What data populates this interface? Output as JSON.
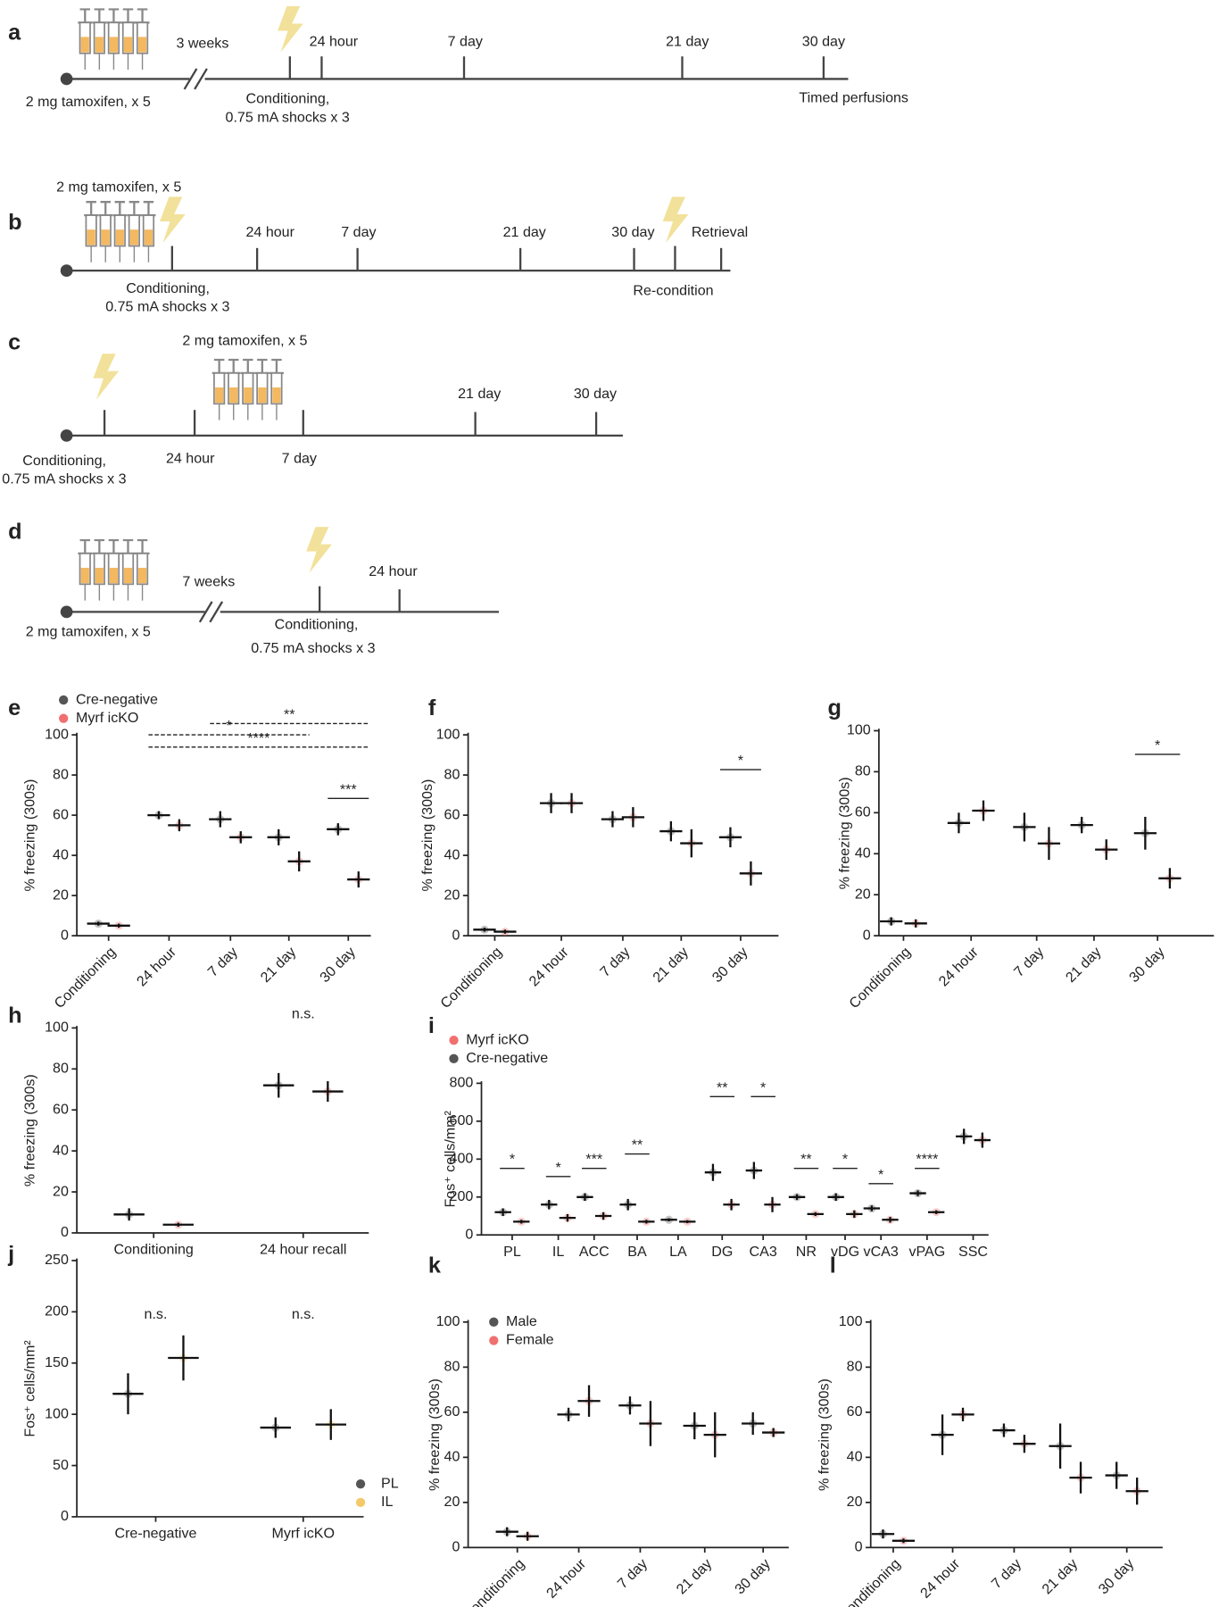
{
  "timelines": [
    {
      "letter": "a",
      "texts": [
        "2 mg tamoxifen, x 5",
        "3 weeks",
        "24 hour",
        "7 day",
        "21 day",
        "30 day",
        "Conditioning,",
        "0.75 mA shocks x 3",
        "Timed perfusions"
      ]
    },
    {
      "letter": "b",
      "texts": [
        "2 mg tamoxifen, x 5",
        "24 hour",
        "7 day",
        "21 day",
        "30 day",
        "Retrieval",
        "Conditioning,",
        "0.75 mA shocks x 3",
        "Re-condition"
      ]
    },
    {
      "letter": "c",
      "texts": [
        "2 mg tamoxifen, x 5",
        "21 day",
        "30 day",
        "Conditioning,",
        "0.75 mA shocks x 3",
        "24 hour",
        "7 day"
      ]
    },
    {
      "letter": "d",
      "texts": [
        "7 weeks",
        "24 hour",
        "2 mg tamoxifen, x 5",
        "Conditioning,",
        "0.75 mA shocks x 3"
      ]
    }
  ],
  "chart_data": [
    {
      "type": "dot",
      "letter": "e",
      "ylabel": "% freezing (300s)",
      "categories": [
        "Conditioning",
        "24 hour",
        "7 day",
        "21 day",
        "30 day"
      ],
      "ylim": [
        0,
        100
      ],
      "yticks": [
        0,
        20,
        40,
        60,
        80,
        100
      ],
      "series": [
        {
          "name": "Cre-negative",
          "color": "#555555",
          "values": [
            6,
            60,
            58,
            49,
            53
          ],
          "errors": [
            1,
            2,
            4,
            4,
            3
          ]
        },
        {
          "name": "Myrf icKO",
          "color": "#f07070",
          "values": [
            5,
            55,
            49,
            37,
            28
          ],
          "errors": [
            1,
            3,
            3,
            5,
            4
          ]
        }
      ],
      "annotations": [
        {
          "label": "**",
          "span": [
            "7 day",
            "30 day"
          ],
          "line": "dashed"
        },
        {
          "label": "*",
          "span": [
            "24 hour",
            "21 day"
          ],
          "line": "dashed"
        },
        {
          "label": "****",
          "span": [
            "24 hour",
            "30 day"
          ],
          "line": "dashed"
        },
        {
          "label": "***",
          "span": [
            "30 day",
            "30 day"
          ],
          "line": "solid"
        }
      ]
    },
    {
      "type": "dot",
      "letter": "f",
      "ylabel": "% freezing (300s)",
      "categories": [
        "Conditioning",
        "24 hour",
        "7 day",
        "21 day",
        "30 day"
      ],
      "ylim": [
        0,
        100
      ],
      "yticks": [
        0,
        20,
        40,
        60,
        80,
        100
      ],
      "series": [
        {
          "color": "#555555",
          "values": [
            3,
            66,
            58,
            52,
            49
          ],
          "errors": [
            1,
            5,
            4,
            5,
            5
          ]
        },
        {
          "color": "#f07070",
          "values": [
            2,
            66,
            59,
            46,
            31
          ],
          "errors": [
            1,
            5,
            5,
            7,
            6
          ]
        }
      ],
      "annotations": [
        {
          "label": "*",
          "span": [
            "30 day",
            "30 day"
          ],
          "line": "solid"
        }
      ]
    },
    {
      "type": "dot",
      "letter": "g",
      "ylabel": "% freezing (300s)",
      "categories": [
        "Conditioning",
        "24 hour",
        "7 day",
        "21 day",
        "30 day"
      ],
      "ylim": [
        0,
        100
      ],
      "yticks": [
        0,
        20,
        40,
        60,
        80,
        100
      ],
      "series": [
        {
          "color": "#555555",
          "values": [
            7,
            55,
            53,
            54,
            50
          ],
          "errors": [
            2,
            5,
            7,
            4,
            8
          ]
        },
        {
          "color": "#f07070",
          "values": [
            6,
            61,
            45,
            42,
            28
          ],
          "errors": [
            2,
            5,
            8,
            5,
            5
          ]
        }
      ],
      "annotations": [
        {
          "label": "*",
          "span": [
            "30 day",
            "30 day"
          ],
          "line": "solid"
        }
      ]
    },
    {
      "type": "dot",
      "letter": "h",
      "ylabel": "% freezing (300s)",
      "categories": [
        "Conditioning",
        "24 hour recall"
      ],
      "ylim": [
        0,
        100
      ],
      "yticks": [
        0,
        20,
        40,
        60,
        80,
        100
      ],
      "series": [
        {
          "color": "#555555",
          "values": [
            9,
            72
          ],
          "errors": [
            3,
            6
          ]
        },
        {
          "color": "#f07070",
          "values": [
            4,
            69
          ],
          "errors": [
            1,
            5
          ]
        }
      ],
      "annotations": [
        {
          "label": "n.s.",
          "span": [
            "24 hour recall",
            "24 hour recall"
          ]
        }
      ]
    },
    {
      "type": "dot",
      "letter": "i",
      "ylabel": "Fos⁺ cells/mm²",
      "categories": [
        "PL",
        "IL",
        "ACC",
        "BA",
        "LA",
        "DG",
        "CA3",
        "NR",
        "vDG",
        "vCA3",
        "vPAG",
        "SSC"
      ],
      "ylim": [
        0,
        800
      ],
      "yticks": [
        0,
        200,
        400,
        600,
        800
      ],
      "series": [
        {
          "name": "Cre-negative",
          "color": "#555555",
          "values": [
            120,
            160,
            200,
            160,
            80,
            330,
            340,
            200,
            200,
            140,
            220,
            520
          ],
          "errors": [
            20,
            25,
            20,
            30,
            8,
            45,
            45,
            15,
            20,
            15,
            15,
            40
          ]
        },
        {
          "name": "Myrf icKO",
          "color": "#f07070",
          "values": [
            70,
            90,
            100,
            70,
            70,
            160,
            160,
            110,
            110,
            80,
            120,
            500
          ],
          "errors": [
            10,
            20,
            20,
            10,
            8,
            30,
            40,
            10,
            20,
            15,
            10,
            40
          ]
        }
      ],
      "legend_order": [
        1,
        0
      ],
      "annotations": [
        {
          "label": "*",
          "span": [
            "PL",
            "PL"
          ],
          "line": "solid"
        },
        {
          "label": "*",
          "span": [
            "IL",
            "IL"
          ],
          "line": "solid"
        },
        {
          "label": "***",
          "span": [
            "ACC",
            "ACC"
          ],
          "line": "solid"
        },
        {
          "label": "**",
          "span": [
            "BA",
            "BA"
          ],
          "line": "solid"
        },
        {
          "label": "**",
          "span": [
            "DG",
            "DG"
          ],
          "line": "solid"
        },
        {
          "label": "*",
          "span": [
            "CA3",
            "CA3"
          ],
          "line": "solid"
        },
        {
          "label": "**",
          "span": [
            "NR",
            "NR"
          ],
          "line": "solid"
        },
        {
          "label": "*",
          "span": [
            "vDG",
            "vDG"
          ],
          "line": "solid"
        },
        {
          "label": "*",
          "span": [
            "vCA3",
            "vCA3"
          ],
          "line": "solid"
        },
        {
          "label": "****",
          "span": [
            "vPAG",
            "vPAG"
          ],
          "line": "solid"
        }
      ]
    },
    {
      "type": "dot",
      "letter": "j",
      "ylabel": "Fos⁺ cells/mm²",
      "categories": [
        "Cre-negative",
        "Myrf icKO"
      ],
      "ylim": [
        0,
        250
      ],
      "yticks": [
        0,
        50,
        100,
        150,
        200,
        250
      ],
      "series": [
        {
          "name": "PL",
          "color": "#555555",
          "values": [
            120,
            87
          ],
          "errors": [
            20,
            10
          ]
        },
        {
          "name": "IL",
          "color": "#f5c96a",
          "values": [
            155,
            90
          ],
          "errors": [
            22,
            15
          ]
        }
      ],
      "annotations": [
        {
          "label": "n.s.",
          "span": [
            "Cre-negative",
            "Cre-negative"
          ]
        },
        {
          "label": "n.s.",
          "span": [
            "Myrf icKO",
            "Myrf icKO"
          ]
        }
      ]
    },
    {
      "type": "dot",
      "letter": "k",
      "ylabel": "% freezing (300s)",
      "categories": [
        "Conditioning",
        "24 hour",
        "7 day",
        "21 day",
        "30 day"
      ],
      "ylim": [
        0,
        100
      ],
      "yticks": [
        0,
        20,
        40,
        60,
        80,
        100
      ],
      "series": [
        {
          "name": "Male",
          "color": "#555555",
          "values": [
            7,
            59,
            63,
            54,
            55
          ],
          "errors": [
            2,
            3,
            4,
            6,
            5
          ]
        },
        {
          "name": "Female",
          "color": "#f07070",
          "values": [
            5,
            65,
            55,
            50,
            51
          ],
          "errors": [
            2,
            7,
            10,
            10,
            2
          ]
        }
      ],
      "annotations": []
    },
    {
      "type": "dot",
      "letter": "l",
      "ylabel": "% freezing (300s)",
      "categories": [
        "Conditioning",
        "24 hour",
        "7 day",
        "21 day",
        "30 day"
      ],
      "ylim": [
        0,
        100
      ],
      "yticks": [
        0,
        20,
        40,
        60,
        80,
        100
      ],
      "series": [
        {
          "color": "#555555",
          "values": [
            6,
            50,
            52,
            45,
            32
          ],
          "errors": [
            2,
            9,
            3,
            10,
            6
          ]
        },
        {
          "color": "#f07070",
          "values": [
            3,
            59,
            46,
            31,
            25
          ],
          "errors": [
            1,
            3,
            4,
            7,
            6
          ]
        }
      ],
      "annotations": []
    }
  ]
}
